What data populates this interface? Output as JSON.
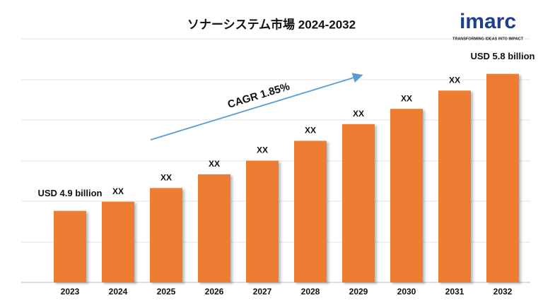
{
  "chart_data": {
    "type": "bar",
    "title": "ソナーシステム市場 2024-2032",
    "categories": [
      "2023",
      "2024",
      "2025",
      "2026",
      "2027",
      "2028",
      "2029",
      "2030",
      "2031",
      "2032"
    ],
    "values": [
      4.9,
      4.96,
      5.05,
      5.14,
      5.23,
      5.36,
      5.47,
      5.57,
      5.69,
      5.8
    ],
    "value_labels": [
      "USD 4.9 billion",
      "XX",
      "XX",
      "XX",
      "XX",
      "XX",
      "XX",
      "XX",
      "XX",
      "USD 5.8 billion"
    ],
    "color": "#ed7d31",
    "ylim": [
      4.43,
      6.03
    ],
    "annotation": "CAGR 1.85%",
    "logo": {
      "name": "imarc",
      "tagline": "TRANSFORMING IDEAS INTO IMPACT"
    }
  }
}
